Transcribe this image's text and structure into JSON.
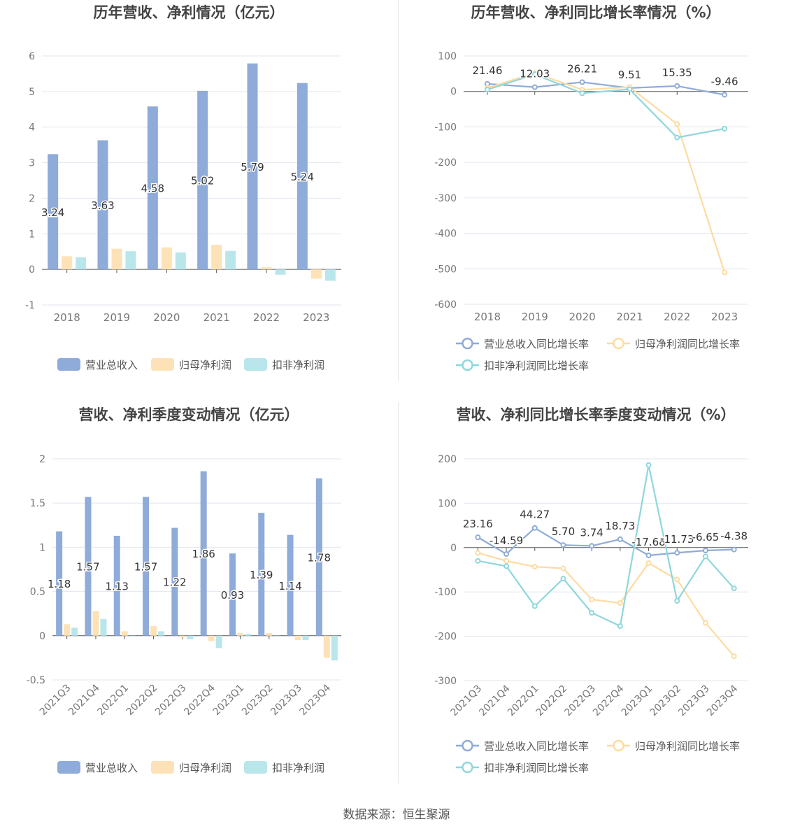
{
  "source_label": "数据来源：恒生聚源",
  "colors": {
    "revenue": "#8eabd9",
    "net_profit": "#fde2b7",
    "deducted_profit": "#b9e6eb",
    "revenue_line": "#8eabd9",
    "net_profit_line": "#fddba2",
    "deducted_line": "#8ed7dc"
  },
  "chart_data": [
    {
      "type": "bar",
      "title": "历年营收、净利情况（亿元）",
      "categories": [
        "2018",
        "2019",
        "2020",
        "2021",
        "2022",
        "2023"
      ],
      "ylim": [
        -1,
        6
      ],
      "yticks": [
        "-1",
        "0",
        "1",
        "2",
        "3",
        "4",
        "5",
        "6"
      ],
      "grid": true,
      "legend_position": "bottom",
      "series": [
        {
          "name": "营业总收入",
          "values": [
            3.24,
            3.63,
            4.58,
            5.02,
            5.79,
            5.24
          ],
          "labels": [
            "3.24",
            "3.63",
            "4.58",
            "5.02",
            "5.79",
            "5.24"
          ]
        },
        {
          "name": "归母净利润",
          "values": [
            0.37,
            0.58,
            0.62,
            0.69,
            0.06,
            -0.26
          ]
        },
        {
          "name": "扣非净利润",
          "values": [
            0.34,
            0.51,
            0.48,
            0.52,
            -0.15,
            -0.32
          ]
        }
      ]
    },
    {
      "type": "line",
      "title": "历年营收、净利同比增长率情况（%）",
      "categories": [
        "2018",
        "2019",
        "2020",
        "2021",
        "2022",
        "2023"
      ],
      "ylim": [
        -600,
        100
      ],
      "yticks": [
        "-600",
        "-500",
        "-400",
        "-300",
        "-200",
        "-100",
        "0",
        "100"
      ],
      "grid": true,
      "legend_position": "bottom",
      "series": [
        {
          "name": "营业总收入同比增长率",
          "values": [
            21.46,
            12.03,
            26.21,
            9.51,
            15.35,
            -9.46
          ],
          "labels": [
            "21.46",
            "12.03",
            "26.21",
            "9.51",
            "15.35",
            "-9.46"
          ]
        },
        {
          "name": "归母净利润同比增长率",
          "values": [
            10,
            52,
            5,
            12,
            -92,
            -510
          ]
        },
        {
          "name": "扣非净利润同比增长率",
          "values": [
            5,
            48,
            -5,
            6,
            -130,
            -105
          ]
        }
      ]
    },
    {
      "type": "bar",
      "title": "营收、净利季度变动情况（亿元）",
      "categories": [
        "2021Q3",
        "2021Q4",
        "2022Q1",
        "2022Q2",
        "2022Q3",
        "2022Q4",
        "2023Q1",
        "2023Q2",
        "2023Q3",
        "2023Q4"
      ],
      "ylim": [
        -0.5,
        2
      ],
      "yticks": [
        "-0.5",
        "0",
        "0.5",
        "1",
        "1.5",
        "2"
      ],
      "grid": true,
      "legend_position": "bottom",
      "series": [
        {
          "name": "营业总收入",
          "values": [
            1.18,
            1.57,
            1.13,
            1.57,
            1.22,
            1.86,
            0.93,
            1.39,
            1.14,
            1.78
          ],
          "labels": [
            "1.18",
            "1.57",
            "1.13",
            "1.57",
            "1.22",
            "1.86",
            "0.93",
            "1.39",
            "1.14",
            "1.78"
          ]
        },
        {
          "name": "归母净利润",
          "values": [
            0.13,
            0.28,
            0.05,
            0.11,
            -0.02,
            -0.06,
            0.03,
            0.03,
            -0.05,
            -0.25
          ]
        },
        {
          "name": "扣非净利润",
          "values": [
            0.09,
            0.19,
            -0.01,
            0.05,
            -0.04,
            -0.14,
            0.02,
            -0.01,
            -0.05,
            -0.28
          ]
        }
      ]
    },
    {
      "type": "line",
      "title": "营收、净利同比增长率季度变动情况（%）",
      "categories": [
        "2021Q3",
        "2021Q4",
        "2022Q1",
        "2022Q2",
        "2022Q3",
        "2022Q4",
        "2023Q1",
        "2023Q2",
        "2023Q3",
        "2023Q4"
      ],
      "ylim": [
        -300,
        200
      ],
      "yticks": [
        "-300",
        "-200",
        "-100",
        "0",
        "100",
        "200"
      ],
      "grid": true,
      "legend_position": "bottom",
      "series": [
        {
          "name": "营业总收入同比增长率",
          "values": [
            23.16,
            -14.59,
            44.27,
            5.7,
            3.74,
            18.73,
            -17.68,
            -11.73,
            -6.65,
            -4.38
          ],
          "labels": [
            "23.16",
            "-14.59",
            "44.27",
            "5.70",
            "3.74",
            "18.73",
            "-17.68",
            "-11.73",
            "-6.65",
            "-4.38"
          ]
        },
        {
          "name": "归母净利润同比增长率",
          "values": [
            -12,
            -30,
            -43,
            -47,
            -117,
            -125,
            -35,
            -72,
            -170,
            -245
          ]
        },
        {
          "name": "扣非净利润同比增长率",
          "values": [
            -30,
            -42,
            -132,
            -70,
            -147,
            -177,
            186,
            -120,
            -20,
            -92
          ]
        }
      ]
    }
  ]
}
